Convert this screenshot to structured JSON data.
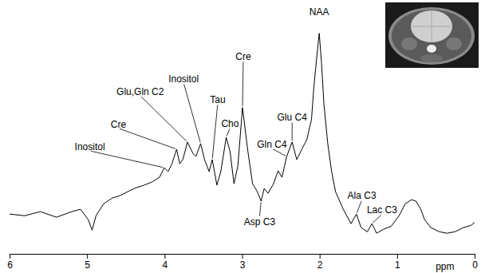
{
  "chart_data": {
    "type": "line",
    "color": "#000000",
    "xlabel": "ppm",
    "xlim": [
      6,
      0
    ],
    "xticks": [
      6,
      5,
      4,
      3,
      2,
      1,
      0
    ],
    "ylim": [
      -7,
      115
    ],
    "tick_labels": "x",
    "x": [
      6.0,
      5.81,
      5.61,
      5.4,
      5.2,
      5.09,
      4.99,
      4.94,
      4.89,
      4.79,
      4.68,
      4.58,
      4.48,
      4.37,
      4.27,
      4.17,
      4.07,
      4.01,
      3.96,
      3.91,
      3.85,
      3.81,
      3.77,
      3.71,
      3.64,
      3.6,
      3.54,
      3.49,
      3.43,
      3.39,
      3.33,
      3.28,
      3.21,
      3.16,
      3.11,
      3.06,
      3.0,
      2.93,
      2.87,
      2.81,
      2.76,
      2.72,
      2.67,
      2.6,
      2.54,
      2.49,
      2.43,
      2.36,
      2.3,
      2.23,
      2.17,
      2.11,
      2.08,
      2.04,
      2.01,
      1.98,
      1.95,
      1.9,
      1.85,
      1.8,
      1.7,
      1.6,
      1.53,
      1.47,
      1.39,
      1.33,
      1.27,
      1.18,
      1.08,
      0.98,
      0.9,
      0.82,
      0.76,
      0.7,
      0.65,
      0.57,
      0.46,
      0.36,
      0.26,
      0.15,
      0.05,
      0.0
    ],
    "values": [
      12.3,
      11.5,
      13.5,
      10.8,
      13.5,
      14.6,
      9.6,
      4.6,
      11.5,
      17.3,
      20.0,
      21.2,
      23.1,
      25.0,
      26.2,
      27.7,
      30.0,
      34.6,
      32.7,
      36.5,
      43.5,
      36.5,
      38.5,
      46.9,
      41.5,
      40.0,
      46.2,
      38.5,
      32.7,
      38.5,
      26.2,
      32.7,
      49.2,
      42.3,
      26.9,
      35.4,
      63.5,
      42.3,
      26.9,
      23.1,
      18.5,
      24.6,
      22.3,
      26.9,
      33.1,
      30.0,
      40.0,
      46.9,
      38.5,
      43.8,
      48.1,
      57.7,
      73.1,
      88.5,
      99.2,
      84.6,
      65.4,
      46.2,
      32.7,
      23.1,
      14.6,
      7.7,
      12.3,
      5.8,
      3.8,
      7.7,
      3.1,
      5.0,
      6.5,
      11.5,
      17.3,
      19.2,
      18.5,
      14.6,
      9.6,
      5.8,
      3.8,
      3.1,
      3.8,
      5.8,
      6.9,
      8.5
    ],
    "annotations": [
      {
        "text": "Inositol",
        "x": 4.97,
        "y": 42.7,
        "peak": 4.01
      },
      {
        "text": "Cre",
        "x": 4.6,
        "y": 53.5,
        "peak": 3.85
      },
      {
        "text": "Glu,Gln C2",
        "x": 4.32,
        "y": 69.2,
        "peak": 3.71
      },
      {
        "text": "Inositol",
        "x": 3.76,
        "y": 75.4,
        "peak": 3.54
      },
      {
        "text": "Tau",
        "x": 3.32,
        "y": 65.4,
        "peak": 3.39
      },
      {
        "text": "Cre",
        "x": 2.99,
        "y": 86.2,
        "peak": 3.0
      },
      {
        "text": "Cho",
        "x": 3.16,
        "y": 53.8,
        "peak": 3.21
      },
      {
        "text": "Asp C3",
        "x": 2.78,
        "y": 10.8,
        "peak": 2.76
      },
      {
        "text": "Gln C4",
        "x": 2.62,
        "y": 43.8,
        "peak": 2.43
      },
      {
        "text": "Glu C4",
        "x": 2.36,
        "y": 56.9,
        "peak": 2.36
      },
      {
        "text": "NAA",
        "x": 2.01,
        "y": 107.7
      },
      {
        "text": "Ala C3",
        "x": 1.46,
        "y": 19.2,
        "peak": 1.53
      },
      {
        "text": "Lac C3",
        "x": 1.2,
        "y": 12.3,
        "peak": 1.33
      }
    ]
  }
}
